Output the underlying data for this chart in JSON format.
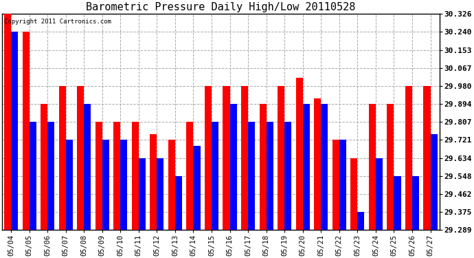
{
  "title": "Barometric Pressure Daily High/Low 20110528",
  "copyright": "Copyright 2011 Cartronics.com",
  "dates": [
    "05/04",
    "05/05",
    "05/06",
    "05/07",
    "05/08",
    "05/09",
    "05/10",
    "05/11",
    "05/12",
    "05/13",
    "05/14",
    "05/15",
    "05/16",
    "05/17",
    "05/18",
    "05/19",
    "05/20",
    "05/21",
    "05/22",
    "05/23",
    "05/24",
    "05/25",
    "05/26",
    "05/27"
  ],
  "highs": [
    30.326,
    30.24,
    29.894,
    29.98,
    29.98,
    29.807,
    29.807,
    29.807,
    29.75,
    29.721,
    29.807,
    29.98,
    29.98,
    29.98,
    29.894,
    29.98,
    30.02,
    29.921,
    29.721,
    29.634,
    29.894,
    29.894,
    29.98,
    29.98
  ],
  "lows": [
    30.24,
    29.807,
    29.807,
    29.721,
    29.894,
    29.721,
    29.721,
    29.634,
    29.634,
    29.548,
    29.694,
    29.807,
    29.894,
    29.807,
    29.807,
    29.807,
    29.894,
    29.894,
    29.721,
    29.375,
    29.634,
    29.548,
    29.548,
    29.75
  ],
  "y_min": 29.289,
  "y_max": 30.326,
  "y_ticks": [
    29.289,
    29.375,
    29.462,
    29.548,
    29.634,
    29.721,
    29.807,
    29.894,
    29.98,
    30.067,
    30.153,
    30.24,
    30.326
  ],
  "high_color": "#ff0000",
  "low_color": "#0000ff",
  "bg_color": "#ffffff",
  "grid_color": "#aaaaaa",
  "title_fontsize": 11,
  "bar_width": 0.38
}
